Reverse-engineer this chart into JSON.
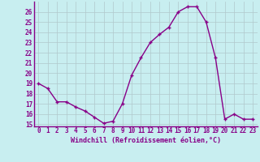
{
  "x": [
    0,
    1,
    2,
    3,
    4,
    5,
    6,
    7,
    8,
    9,
    10,
    11,
    12,
    13,
    14,
    15,
    16,
    17,
    18,
    19,
    20,
    21,
    22,
    23
  ],
  "y": [
    19.0,
    18.5,
    17.2,
    17.2,
    16.7,
    16.3,
    15.7,
    15.1,
    15.3,
    17.0,
    19.8,
    21.5,
    23.0,
    23.8,
    24.5,
    26.0,
    26.5,
    26.5,
    25.0,
    21.5,
    15.5,
    16.0,
    15.5,
    15.5
  ],
  "ylim_min": 14.8,
  "ylim_max": 27.0,
  "yticks": [
    15,
    16,
    17,
    18,
    19,
    20,
    21,
    22,
    23,
    24,
    25,
    26
  ],
  "xticks": [
    0,
    1,
    2,
    3,
    4,
    5,
    6,
    7,
    8,
    9,
    10,
    11,
    12,
    13,
    14,
    15,
    16,
    17,
    18,
    19,
    20,
    21,
    22,
    23
  ],
  "xlabel": "Windchill (Refroidissement éolien,°C)",
  "line_color": "#880088",
  "marker": "+",
  "bg_color": "#c8eef0",
  "grid_color": "#b0c8cc",
  "tick_label_color": "#880088",
  "axis_label_color": "#880088",
  "font_name": "monospace",
  "tick_fontsize": 5.5,
  "label_fontsize": 6.0
}
